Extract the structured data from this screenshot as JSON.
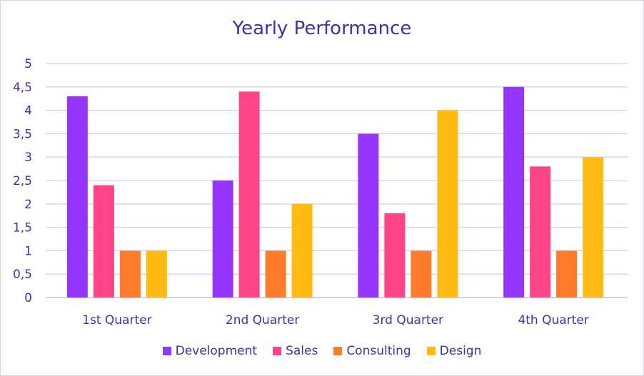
{
  "chart_data": {
    "type": "bar",
    "title": "Yearly Performance",
    "xlabel": "",
    "ylabel": "",
    "ylim": [
      0,
      5
    ],
    "yticks": [
      "0",
      "0,5",
      "1",
      "1,5",
      "2",
      "2,5",
      "3",
      "3,5",
      "4",
      "4,5",
      "5"
    ],
    "ytick_values": [
      0,
      0.5,
      1,
      1.5,
      2,
      2.5,
      3,
      3.5,
      4,
      4.5,
      5
    ],
    "categories": [
      "1st Quarter",
      "2nd Quarter",
      "3rd Quarter",
      "4th Quarter"
    ],
    "series": [
      {
        "name": "Development",
        "color": "#9436ff",
        "values": [
          4.3,
          2.5,
          3.5,
          4.5
        ]
      },
      {
        "name": "Sales",
        "color": "#ff4389",
        "values": [
          2.4,
          4.4,
          1.8,
          2.8
        ]
      },
      {
        "name": "Consulting",
        "color": "#ff7a2a",
        "values": [
          1,
          1,
          1,
          1
        ]
      },
      {
        "name": "Design",
        "color": "#ffbb13",
        "values": [
          1,
          2,
          4,
          3
        ]
      }
    ],
    "grid": true,
    "legend_position": "bottom"
  }
}
